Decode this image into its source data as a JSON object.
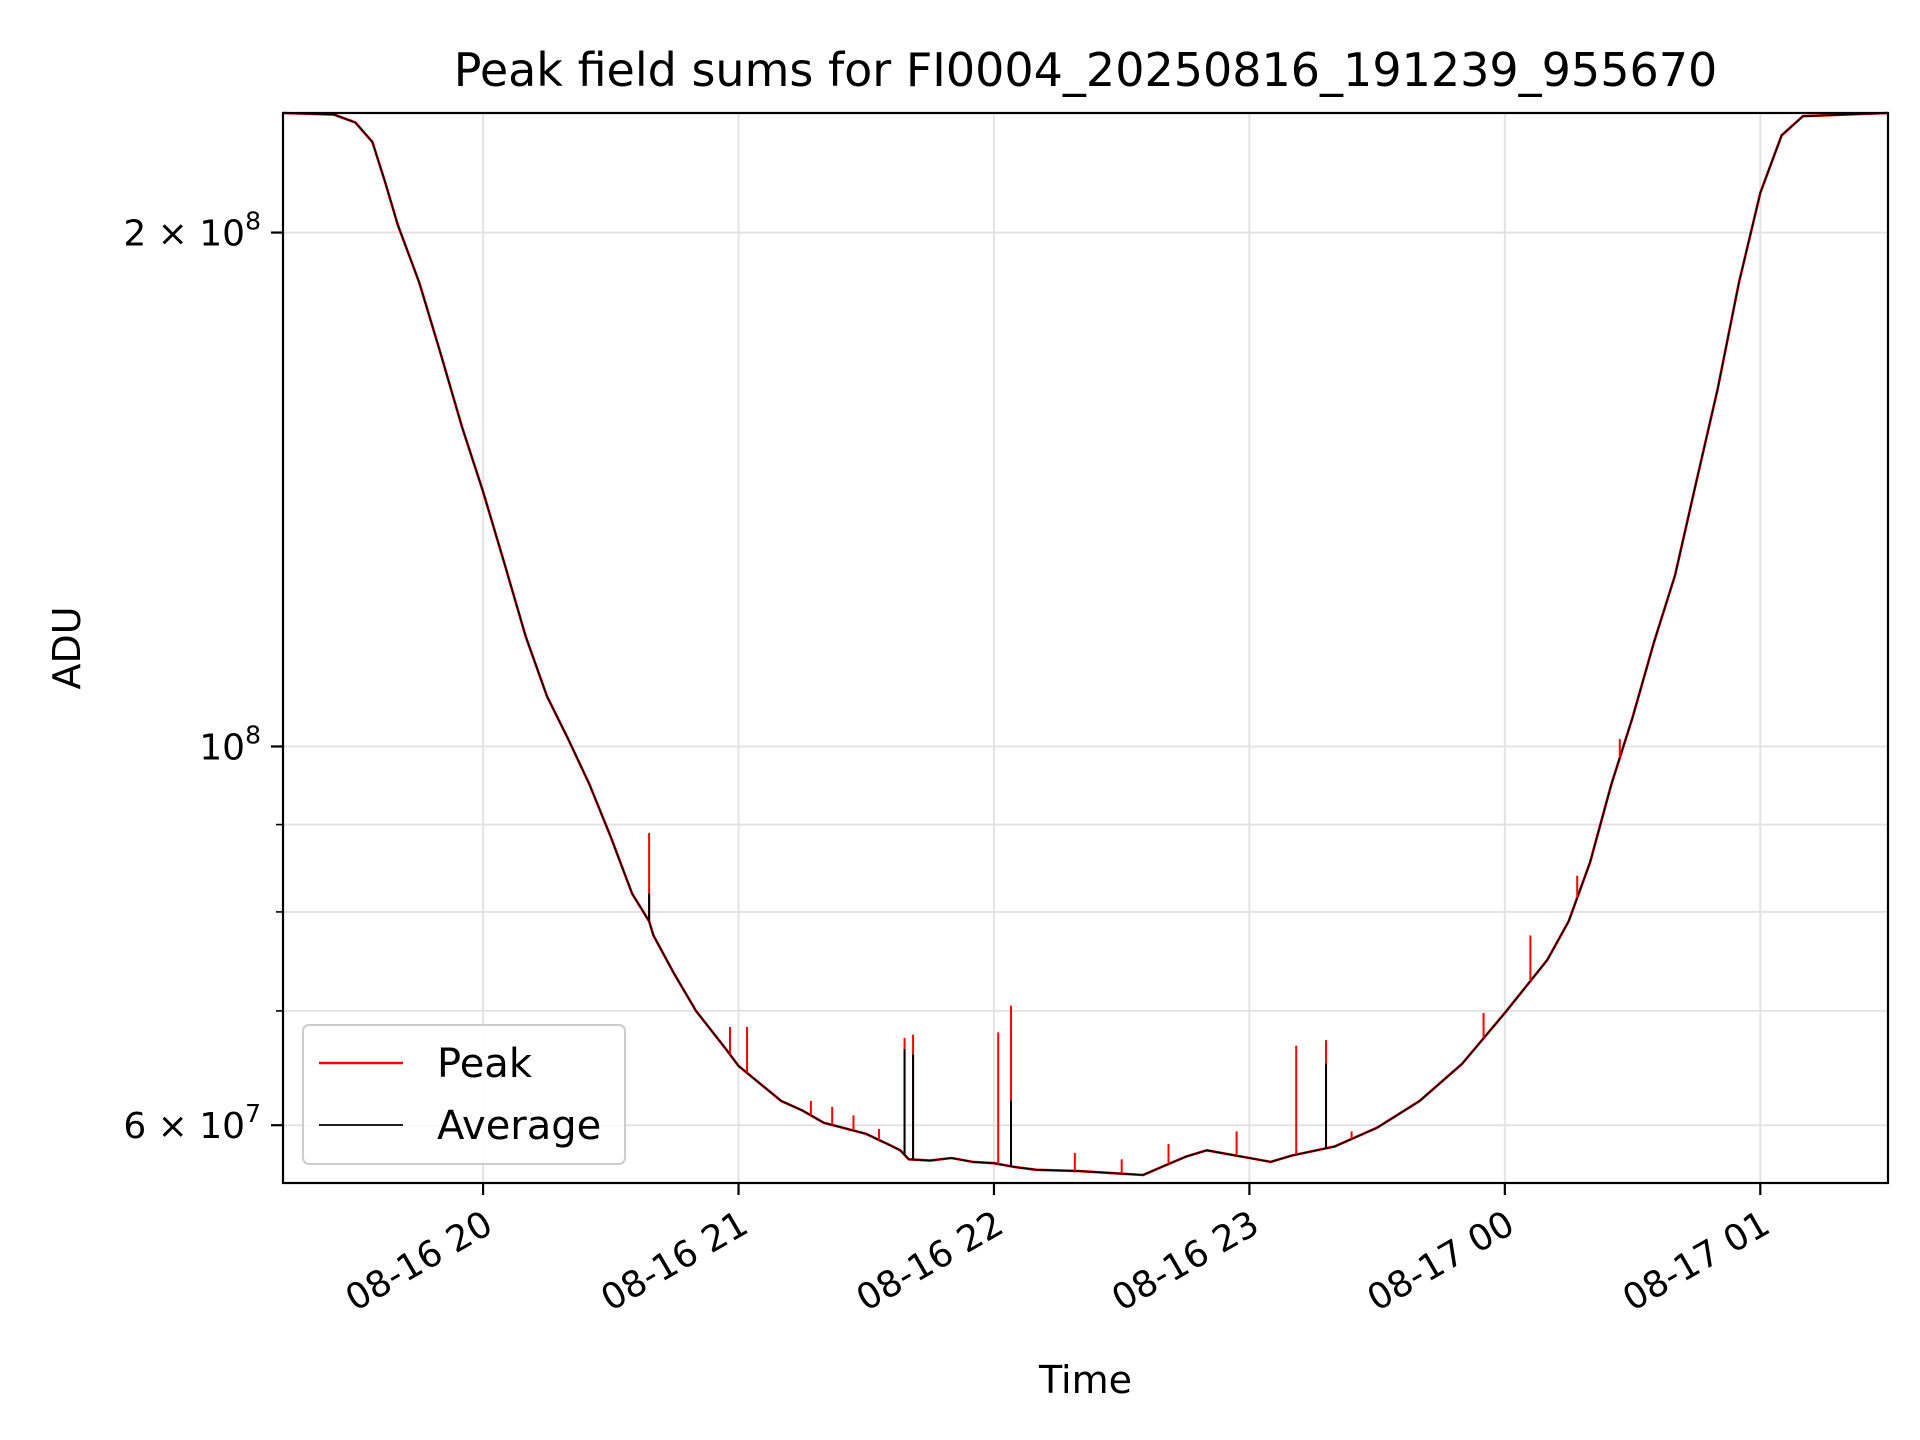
{
  "chart_data": {
    "type": "line",
    "title": "Peak field sums for FI0004_20250816_191239_955670",
    "xlabel": "Time",
    "ylabel": "ADU",
    "yscale": "log",
    "grid": true,
    "legend_position": "lower-left",
    "xlim": [
      "2025-08-16 19:13",
      "2025-08-17 01:30"
    ],
    "ylim": [
      55500000,
      235000000
    ],
    "x_ticks": [
      {
        "value": "2025-08-16 20:00",
        "label": "08-16 20"
      },
      {
        "value": "2025-08-16 21:00",
        "label": "08-16 21"
      },
      {
        "value": "2025-08-16 22:00",
        "label": "08-16 22"
      },
      {
        "value": "2025-08-16 23:00",
        "label": "08-16 23"
      },
      {
        "value": "2025-08-17 00:00",
        "label": "08-17 00"
      },
      {
        "value": "2025-08-17 01:00",
        "label": "08-17 01"
      }
    ],
    "y_major_ticks": [
      {
        "value": 60000000,
        "mantissa": "6",
        "base": "10",
        "exponent": "7"
      },
      {
        "value": 100000000,
        "mantissa": "",
        "base": "10",
        "exponent": "8"
      },
      {
        "value": 200000000,
        "mantissa": "2",
        "base": "10",
        "exponent": "8"
      }
    ],
    "y_minor_ticks": [
      70000000,
      80000000,
      90000000
    ],
    "series": [
      {
        "name": "Peak",
        "color": "#ff0000",
        "x": [
          "2025-08-16 19:13",
          "2025-08-16 19:25",
          "2025-08-16 19:30",
          "2025-08-16 19:34",
          "2025-08-16 19:37",
          "2025-08-16 19:40",
          "2025-08-16 19:45",
          "2025-08-16 19:50",
          "2025-08-16 19:55",
          "2025-08-16 20:00",
          "2025-08-16 20:05",
          "2025-08-16 20:10",
          "2025-08-16 20:15",
          "2025-08-16 20:20",
          "2025-08-16 20:25",
          "2025-08-16 20:30",
          "2025-08-16 20:35",
          "2025-08-16 20:39",
          "2025-08-16 20:40",
          "2025-08-16 20:45",
          "2025-08-16 20:50",
          "2025-08-16 20:55",
          "2025-08-16 20:57",
          "2025-08-16 21:00",
          "2025-08-16 21:10",
          "2025-08-16 21:15",
          "2025-08-16 21:20",
          "2025-08-16 21:30",
          "2025-08-16 21:35",
          "2025-08-16 21:38",
          "2025-08-16 21:40",
          "2025-08-16 21:45",
          "2025-08-16 21:50",
          "2025-08-16 21:55",
          "2025-08-16 22:00",
          "2025-08-16 22:05",
          "2025-08-16 22:10",
          "2025-08-16 22:20",
          "2025-08-16 22:30",
          "2025-08-16 22:35",
          "2025-08-16 22:40",
          "2025-08-16 22:45",
          "2025-08-16 22:50",
          "2025-08-16 23:00",
          "2025-08-16 23:05",
          "2025-08-16 23:10",
          "2025-08-16 23:20",
          "2025-08-16 23:30",
          "2025-08-16 23:40",
          "2025-08-16 23:50",
          "2025-08-17 00:00",
          "2025-08-17 00:10",
          "2025-08-17 00:15",
          "2025-08-17 00:20",
          "2025-08-17 00:25",
          "2025-08-17 00:30",
          "2025-08-17 00:35",
          "2025-08-17 00:40",
          "2025-08-17 00:45",
          "2025-08-17 00:50",
          "2025-08-17 00:55",
          "2025-08-17 01:00",
          "2025-08-17 01:05",
          "2025-08-17 01:10",
          "2025-08-17 01:30"
        ],
        "values": [
          235000000,
          234500000,
          232000000,
          226000000,
          214000000,
          202000000,
          187000000,
          170000000,
          154000000,
          141000000,
          128000000,
          116000000,
          107000000,
          101000000,
          95000000,
          88500000,
          82000000,
          79000000,
          77500000,
          73500000,
          70000000,
          67500000,
          66500000,
          65000000,
          62000000,
          61200000,
          60200000,
          59300000,
          58500000,
          58000000,
          57300000,
          57200000,
          57400000,
          57100000,
          57000000,
          56700000,
          56500000,
          56400000,
          56200000,
          56100000,
          56800000,
          57500000,
          58000000,
          57400000,
          57100000,
          57600000,
          58300000,
          59800000,
          62000000,
          65200000,
          69800000,
          75000000,
          79000000,
          85500000,
          95000000,
          104000000,
          115000000,
          126000000,
          143000000,
          162000000,
          187000000,
          211000000,
          228000000,
          234000000,
          235000000
        ]
      },
      {
        "name": "Average",
        "color": "#000000",
        "x": [
          "2025-08-16 19:13",
          "2025-08-16 19:25",
          "2025-08-16 19:30",
          "2025-08-16 19:34",
          "2025-08-16 19:37",
          "2025-08-16 19:40",
          "2025-08-16 19:45",
          "2025-08-16 19:50",
          "2025-08-16 19:55",
          "2025-08-16 20:00",
          "2025-08-16 20:05",
          "2025-08-16 20:10",
          "2025-08-16 20:15",
          "2025-08-16 20:20",
          "2025-08-16 20:25",
          "2025-08-16 20:30",
          "2025-08-16 20:35",
          "2025-08-16 20:39",
          "2025-08-16 20:40",
          "2025-08-16 20:45",
          "2025-08-16 20:50",
          "2025-08-16 20:55",
          "2025-08-16 20:57",
          "2025-08-16 21:00",
          "2025-08-16 21:10",
          "2025-08-16 21:15",
          "2025-08-16 21:20",
          "2025-08-16 21:30",
          "2025-08-16 21:35",
          "2025-08-16 21:38",
          "2025-08-16 21:40",
          "2025-08-16 21:45",
          "2025-08-16 21:50",
          "2025-08-16 21:55",
          "2025-08-16 22:00",
          "2025-08-16 22:05",
          "2025-08-16 22:10",
          "2025-08-16 22:20",
          "2025-08-16 22:30",
          "2025-08-16 22:35",
          "2025-08-16 22:40",
          "2025-08-16 22:45",
          "2025-08-16 22:50",
          "2025-08-16 23:00",
          "2025-08-16 23:05",
          "2025-08-16 23:10",
          "2025-08-16 23:20",
          "2025-08-16 23:30",
          "2025-08-16 23:40",
          "2025-08-16 23:50",
          "2025-08-17 00:00",
          "2025-08-17 00:10",
          "2025-08-17 00:15",
          "2025-08-17 00:20",
          "2025-08-17 00:25",
          "2025-08-17 00:30",
          "2025-08-17 00:35",
          "2025-08-17 00:40",
          "2025-08-17 00:45",
          "2025-08-17 00:50",
          "2025-08-17 00:55",
          "2025-08-17 01:00",
          "2025-08-17 01:05",
          "2025-08-17 01:10",
          "2025-08-17 01:30"
        ],
        "values": [
          235000000,
          234500000,
          232000000,
          226000000,
          214000000,
          202000000,
          187000000,
          170000000,
          154000000,
          141000000,
          128000000,
          116000000,
          107000000,
          101000000,
          95000000,
          88500000,
          82000000,
          79000000,
          77500000,
          73500000,
          70000000,
          67500000,
          66500000,
          65000000,
          62000000,
          61200000,
          60200000,
          59300000,
          58500000,
          58000000,
          57300000,
          57200000,
          57400000,
          57100000,
          57000000,
          56700000,
          56500000,
          56400000,
          56200000,
          56100000,
          56800000,
          57500000,
          58000000,
          57400000,
          57100000,
          57600000,
          58300000,
          59800000,
          62000000,
          65200000,
          69800000,
          75000000,
          79000000,
          85500000,
          95000000,
          104000000,
          115000000,
          126000000,
          143000000,
          162000000,
          187000000,
          211000000,
          228000000,
          234000000,
          235000000
        ]
      }
    ],
    "spikes": [
      {
        "series": "Peak",
        "x": "2025-08-16 20:39",
        "value": 89000000
      },
      {
        "series": "Average",
        "x": "2025-08-16 20:39",
        "value": 82000000
      },
      {
        "series": "Peak",
        "x": "2025-08-16 20:58",
        "value": 68500000
      },
      {
        "series": "Peak",
        "x": "2025-08-16 21:02",
        "value": 68500000
      },
      {
        "series": "Peak",
        "x": "2025-08-16 21:17",
        "value": 62000000
      },
      {
        "series": "Peak",
        "x": "2025-08-16 21:22",
        "value": 61500000
      },
      {
        "series": "Peak",
        "x": "2025-08-16 21:27",
        "value": 60800000
      },
      {
        "series": "Peak",
        "x": "2025-08-16 21:33",
        "value": 59700000
      },
      {
        "series": "Peak",
        "x": "2025-08-16 21:39",
        "value": 67500000
      },
      {
        "series": "Average",
        "x": "2025-08-16 21:39",
        "value": 66500000
      },
      {
        "series": "Peak",
        "x": "2025-08-16 21:41",
        "value": 67800000
      },
      {
        "series": "Average",
        "x": "2025-08-16 21:41",
        "value": 66000000
      },
      {
        "series": "Peak",
        "x": "2025-08-16 22:01",
        "value": 68000000
      },
      {
        "series": "Peak",
        "x": "2025-08-16 22:04",
        "value": 70500000
      },
      {
        "series": "Average",
        "x": "2025-08-16 22:04",
        "value": 62000000
      },
      {
        "series": "Peak",
        "x": "2025-08-16 22:19",
        "value": 57800000
      },
      {
        "series": "Peak",
        "x": "2025-08-16 22:30",
        "value": 57300000
      },
      {
        "series": "Peak",
        "x": "2025-08-16 22:41",
        "value": 58500000
      },
      {
        "series": "Peak",
        "x": "2025-08-16 22:57",
        "value": 59500000
      },
      {
        "series": "Peak",
        "x": "2025-08-16 23:11",
        "value": 66800000
      },
      {
        "series": "Peak",
        "x": "2025-08-16 23:18",
        "value": 67300000
      },
      {
        "series": "Average",
        "x": "2025-08-16 23:18",
        "value": 65200000
      },
      {
        "series": "Peak",
        "x": "2025-08-16 23:24",
        "value": 59500000
      },
      {
        "series": "Peak",
        "x": "2025-08-16 23:55",
        "value": 69800000
      },
      {
        "series": "Peak",
        "x": "2025-08-17 00:06",
        "value": 77500000
      },
      {
        "series": "Peak",
        "x": "2025-08-17 00:17",
        "value": 84000000
      },
      {
        "series": "Peak",
        "x": "2025-08-17 00:27",
        "value": 101000000
      }
    ]
  }
}
